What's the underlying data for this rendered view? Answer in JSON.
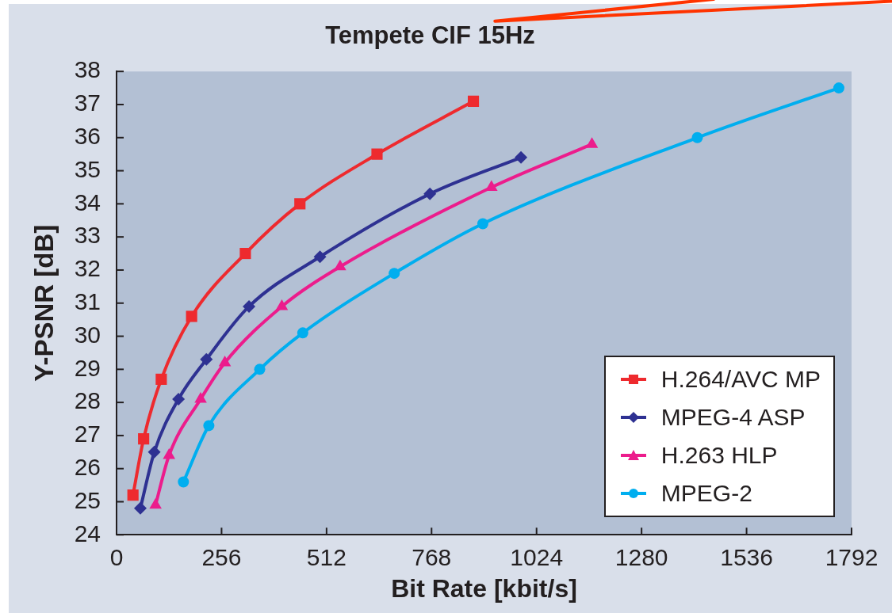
{
  "chart_data": {
    "type": "line",
    "title": "Tempete CIF 15Hz",
    "xlabel": "Bit Rate [kbit/s]",
    "ylabel": "Y-PSNR [dB]",
    "xlim": [
      0,
      1792
    ],
    "xticks": [
      0,
      256,
      512,
      768,
      1024,
      1280,
      1536,
      1792
    ],
    "ylim": [
      24,
      38
    ],
    "yticks": [
      24,
      25,
      26,
      27,
      28,
      29,
      30,
      31,
      32,
      33,
      34,
      35,
      36,
      37,
      38
    ],
    "grid": false,
    "legend": "bottom right",
    "series": [
      {
        "name": "H.264/AVC MP",
        "color": "#ee2a2e",
        "marker": "square",
        "x": [
          40,
          66,
          109,
          183,
          314,
          447,
          635,
          870
        ],
        "values": [
          25.2,
          26.9,
          28.7,
          30.6,
          32.5,
          34.0,
          35.5,
          37.1
        ]
      },
      {
        "name": "MPEG-4 ASP",
        "color": "#2e3192",
        "marker": "diamond",
        "x": [
          58,
          92,
          151,
          219,
          323,
          496,
          764,
          986
        ],
        "values": [
          24.8,
          26.5,
          28.1,
          29.3,
          30.9,
          32.4,
          34.3,
          35.4
        ]
      },
      {
        "name": "H.263 HLP",
        "color": "#ec1c8c",
        "marker": "triangle",
        "x": [
          95,
          128,
          205,
          264,
          403,
          545,
          914,
          1159
        ],
        "values": [
          24.9,
          26.4,
          28.1,
          29.2,
          30.9,
          32.1,
          34.5,
          35.8
        ]
      },
      {
        "name": "MPEG-2",
        "color": "#00aeef",
        "marker": "circle",
        "x": [
          163,
          225,
          349,
          454,
          677,
          893,
          1416,
          1761
        ],
        "values": [
          25.6,
          27.3,
          29.0,
          30.1,
          31.9,
          33.4,
          36.0,
          37.5
        ]
      }
    ]
  }
}
